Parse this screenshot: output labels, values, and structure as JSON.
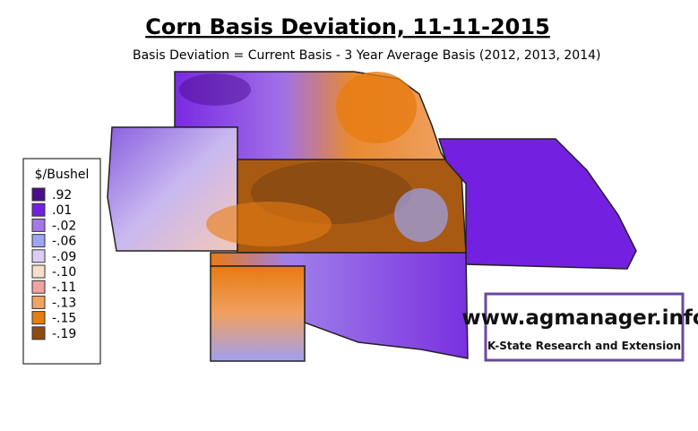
{
  "title": "Corn Basis Deviation, 11-11-2015",
  "subtitle": "Basis Deviation = Current Basis - 3 Year Average Basis (2012, 2013, 2014)",
  "legend": {
    "title": "$/Bushel",
    "items": [
      {
        "label": ".92",
        "color": "#4b0c8e"
      },
      {
        "label": ".01",
        "color": "#7420e0"
      },
      {
        "label": "-.02",
        "color": "#a476ea"
      },
      {
        "label": "-.06",
        "color": "#9da4f2"
      },
      {
        "label": "-.09",
        "color": "#dccdf6"
      },
      {
        "label": "-.10",
        "color": "#f9dfcb"
      },
      {
        "label": "-.11",
        "color": "#f0a3a0"
      },
      {
        "label": "-.13",
        "color": "#f1a462"
      },
      {
        "label": "-.15",
        "color": "#e77c12"
      },
      {
        "label": "-.19",
        "color": "#8d4c12"
      }
    ]
  },
  "logo": {
    "url": "www.agmanager.info",
    "org": "K-State Research and Extension"
  }
}
